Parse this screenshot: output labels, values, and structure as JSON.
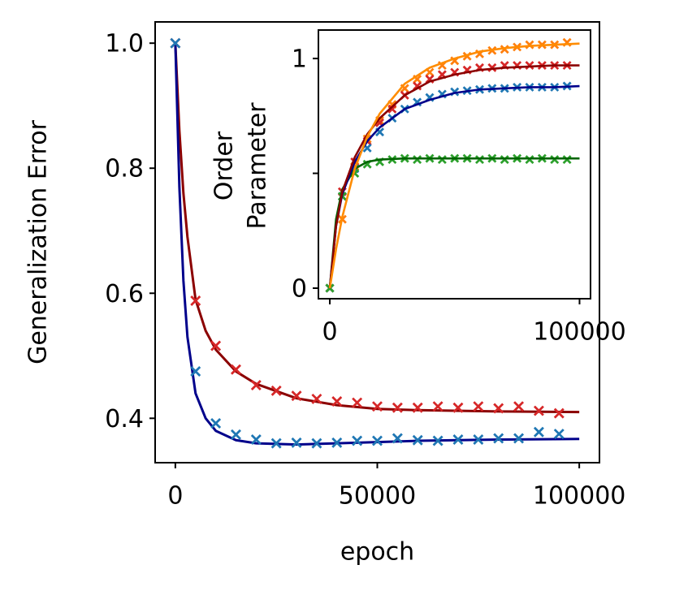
{
  "chart_data": [
    {
      "type": "line",
      "xlabel": "epoch",
      "ylabel": "Generalization Error",
      "xlim": [
        -5000,
        105000
      ],
      "ylim": [
        0.329,
        1.034
      ],
      "xticks": [
        0,
        50000,
        100000
      ],
      "yticks": [
        {
          "value": 1,
          "label": "1.0"
        },
        0.8,
        0.6,
        0.4
      ],
      "series": [
        {
          "kind": "line",
          "color": "#8b0000",
          "x": [
            0,
            1000,
            2000,
            3000,
            5000,
            7500,
            10000,
            15000,
            20000,
            30000,
            40000,
            50000,
            60000,
            80000,
            100000
          ],
          "values": [
            1.0,
            0.86,
            0.76,
            0.69,
            0.59,
            0.54,
            0.51,
            0.475,
            0.455,
            0.432,
            0.421,
            0.415,
            0.413,
            0.411,
            0.41
          ]
        },
        {
          "kind": "line",
          "color": "#00008b",
          "x": [
            0,
            1000,
            2000,
            3000,
            5000,
            7500,
            10000,
            15000,
            20000,
            30000,
            40000,
            50000,
            60000,
            80000,
            100000
          ],
          "values": [
            1.0,
            0.77,
            0.62,
            0.53,
            0.44,
            0.4,
            0.38,
            0.365,
            0.36,
            0.358,
            0.36,
            0.362,
            0.364,
            0.366,
            0.367
          ]
        },
        {
          "kind": "scatter",
          "color": "#d62728",
          "x": [
            0,
            5000,
            10000,
            15000,
            20000,
            25000,
            30000,
            35000,
            40000,
            45000,
            50000,
            55000,
            60000,
            65000,
            70000,
            75000,
            80000,
            85000,
            90000,
            95000
          ],
          "values": [
            1.0,
            0.588,
            0.516,
            0.478,
            0.453,
            0.444,
            0.436,
            0.431,
            0.427,
            0.425,
            0.419,
            0.417,
            0.417,
            0.419,
            0.417,
            0.419,
            0.416,
            0.419,
            0.412,
            0.408
          ]
        },
        {
          "kind": "scatter",
          "color": "#1f77b4",
          "x": [
            0,
            5000,
            10000,
            15000,
            20000,
            25000,
            30000,
            35000,
            40000,
            45000,
            50000,
            55000,
            60000,
            65000,
            70000,
            75000,
            80000,
            85000,
            90000,
            95000
          ],
          "values": [
            1.0,
            0.475,
            0.392,
            0.374,
            0.366,
            0.36,
            0.361,
            0.36,
            0.361,
            0.364,
            0.364,
            0.368,
            0.365,
            0.364,
            0.366,
            0.366,
            0.368,
            0.368,
            0.378,
            0.375
          ]
        }
      ]
    },
    {
      "type": "line",
      "ylabel": [
        "Order",
        "Parameter"
      ],
      "xlim": [
        -4560,
        104400
      ],
      "ylim": [
        -0.046,
        1.124
      ],
      "xticks": [
        0,
        100000
      ],
      "yticks": [
        0,
        {
          "value": 0.5,
          "label": null
        },
        1
      ],
      "series": [
        {
          "kind": "scatter",
          "color": "#ff7f0e",
          "x": [
            0,
            5000,
            10000,
            15000,
            20000,
            25000,
            30000,
            35000,
            40000,
            45000,
            50000,
            55000,
            60000,
            65000,
            70000,
            75000,
            80000,
            85000,
            90000,
            95000
          ],
          "values": [
            0,
            0.3,
            0.53,
            0.65,
            0.73,
            0.8,
            0.87,
            0.91,
            0.94,
            0.97,
            0.99,
            1.01,
            1.02,
            1.035,
            1.04,
            1.05,
            1.06,
            1.06,
            1.06,
            1.07
          ]
        },
        {
          "kind": "scatter",
          "color": "#d62728",
          "x": [
            0,
            5000,
            10000,
            15000,
            20000,
            25000,
            30000,
            35000,
            40000,
            45000,
            50000,
            55000,
            60000,
            65000,
            70000,
            75000,
            80000,
            85000,
            90000,
            95000
          ],
          "values": [
            0,
            0.42,
            0.55,
            0.64,
            0.72,
            0.78,
            0.84,
            0.88,
            0.91,
            0.93,
            0.94,
            0.95,
            0.96,
            0.96,
            0.97,
            0.97,
            0.97,
            0.97,
            0.97,
            0.97
          ]
        },
        {
          "kind": "scatter",
          "color": "#1f77b4",
          "x": [
            0,
            5000,
            10000,
            15000,
            20000,
            25000,
            30000,
            35000,
            40000,
            45000,
            50000,
            55000,
            60000,
            65000,
            70000,
            75000,
            80000,
            85000,
            90000,
            95000
          ],
          "values": [
            0,
            0.4,
            0.52,
            0.61,
            0.68,
            0.74,
            0.78,
            0.81,
            0.83,
            0.845,
            0.855,
            0.86,
            0.865,
            0.87,
            0.87,
            0.875,
            0.875,
            0.875,
            0.875,
            0.88
          ]
        },
        {
          "kind": "scatter",
          "color": "#2ca02c",
          "x": [
            0,
            5000,
            10000,
            15000,
            20000,
            25000,
            30000,
            35000,
            40000,
            45000,
            50000,
            55000,
            60000,
            65000,
            70000,
            75000,
            80000,
            85000,
            90000,
            95000
          ],
          "values": [
            0,
            0.4,
            0.5,
            0.54,
            0.55,
            0.56,
            0.565,
            0.56,
            0.565,
            0.56,
            0.565,
            0.565,
            0.56,
            0.565,
            0.56,
            0.565,
            0.56,
            0.565,
            0.56,
            0.56
          ]
        },
        {
          "kind": "line",
          "color": "#006400",
          "x": [
            0,
            2500,
            5000,
            10000,
            15000,
            20000,
            30000,
            40000,
            50000,
            60000,
            70000,
            80000,
            90000,
            100000
          ],
          "values": [
            0,
            0.3,
            0.43,
            0.52,
            0.55,
            0.56,
            0.565,
            0.565,
            0.565,
            0.565,
            0.565,
            0.565,
            0.565,
            0.565
          ]
        },
        {
          "kind": "line",
          "color": "#00008b",
          "x": [
            0,
            2500,
            5000,
            10000,
            15000,
            20000,
            30000,
            40000,
            50000,
            60000,
            70000,
            80000,
            90000,
            100000
          ],
          "values": [
            0,
            0.27,
            0.41,
            0.55,
            0.64,
            0.7,
            0.78,
            0.82,
            0.85,
            0.865,
            0.87,
            0.875,
            0.875,
            0.88
          ]
        },
        {
          "kind": "line",
          "color": "#8b0000",
          "x": [
            0,
            2500,
            5000,
            10000,
            15000,
            20000,
            30000,
            40000,
            50000,
            60000,
            70000,
            80000,
            90000,
            100000
          ],
          "values": [
            0,
            0.27,
            0.42,
            0.57,
            0.67,
            0.74,
            0.84,
            0.9,
            0.93,
            0.95,
            0.96,
            0.965,
            0.97,
            0.97
          ]
        },
        {
          "kind": "line",
          "color": "#ff8c00",
          "x": [
            0,
            2500,
            5000,
            10000,
            15000,
            20000,
            30000,
            40000,
            50000,
            60000,
            70000,
            80000,
            90000,
            100000
          ],
          "values": [
            0,
            0.17,
            0.31,
            0.52,
            0.66,
            0.76,
            0.89,
            0.96,
            1.0,
            1.03,
            1.045,
            1.055,
            1.06,
            1.065
          ]
        }
      ]
    }
  ]
}
